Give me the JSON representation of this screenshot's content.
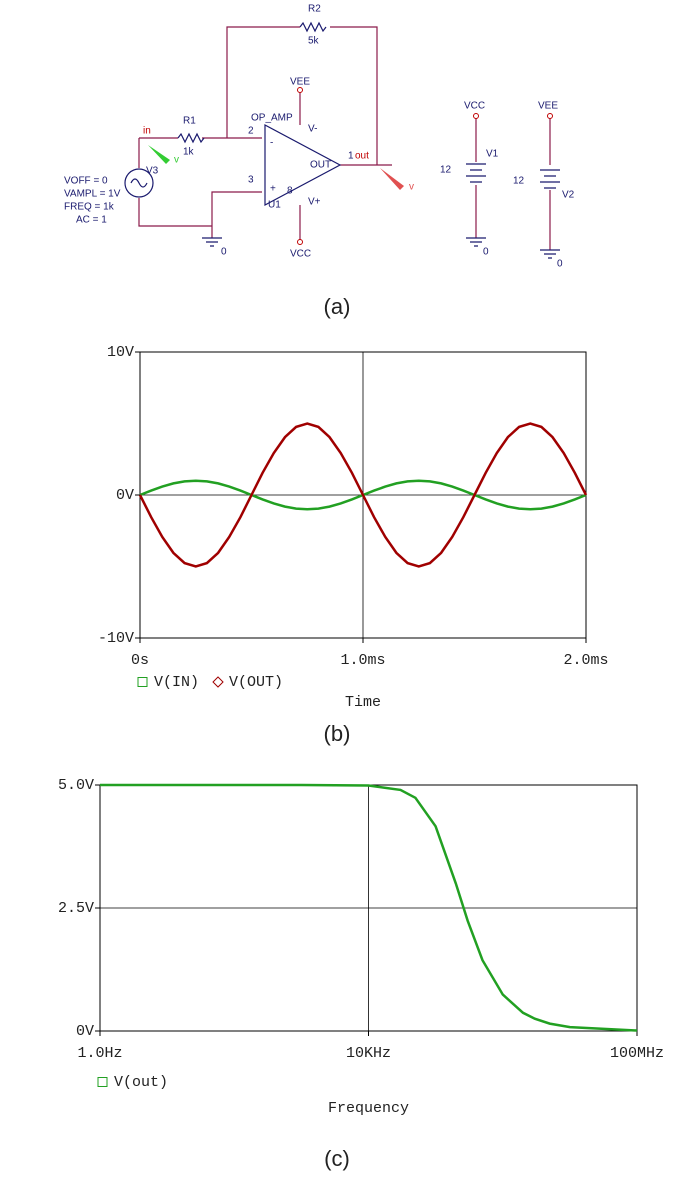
{
  "schematic": {
    "labels": [
      "R2",
      "5k",
      "R1",
      "1k",
      "VEE",
      "OP_AMP",
      "V-",
      "2",
      "-",
      "in",
      "OUT",
      "1",
      "out",
      "3",
      "+",
      "8",
      "U1",
      "V+",
      "VCC",
      "V3",
      "VOFF = 0",
      "VAMPL = 1V",
      "FREQ = 1k",
      "AC = 1",
      "0",
      "VCC",
      "V1",
      "12",
      "0",
      "VEE",
      "V2",
      "12",
      "0",
      "v",
      "v"
    ]
  },
  "captions": [
    "(a)",
    "(b)",
    "(c)"
  ],
  "chart_data": [
    {
      "type": "line",
      "xlabel": "Time",
      "x": [
        0,
        0.05,
        0.1,
        0.15,
        0.2,
        0.25,
        0.3,
        0.35,
        0.4,
        0.45,
        0.5,
        0.55,
        0.6,
        0.65,
        0.7,
        0.75,
        0.8,
        0.85,
        0.9,
        0.95,
        1,
        1.05,
        1.1,
        1.15,
        1.2,
        1.25,
        1.3,
        1.35,
        1.4,
        1.45,
        1.5,
        1.55,
        1.6,
        1.65,
        1.7,
        1.75,
        1.8,
        1.85,
        1.9,
        1.95,
        2
      ],
      "series": [
        {
          "name": "V(IN)",
          "color": "#22a022",
          "marker": "square",
          "values": [
            0,
            0.31,
            0.59,
            0.81,
            0.95,
            1,
            0.95,
            0.81,
            0.59,
            0.31,
            0,
            -0.31,
            -0.59,
            -0.81,
            -0.95,
            -1,
            -0.95,
            -0.81,
            -0.59,
            -0.31,
            0,
            0.31,
            0.59,
            0.81,
            0.95,
            1,
            0.95,
            0.81,
            0.59,
            0.31,
            0,
            -0.31,
            -0.59,
            -0.81,
            -0.95,
            -1,
            -0.95,
            -0.81,
            -0.59,
            -0.31,
            0
          ]
        },
        {
          "name": "V(OUT)",
          "color": "#a00000",
          "marker": "diamond",
          "values": [
            0,
            -1.55,
            -2.94,
            -4.05,
            -4.76,
            -5,
            -4.76,
            -4.05,
            -2.94,
            -1.55,
            0,
            1.55,
            2.94,
            4.05,
            4.76,
            5,
            4.76,
            4.05,
            2.94,
            1.55,
            0,
            -1.55,
            -2.94,
            -4.05,
            -4.76,
            -5,
            -4.76,
            -4.05,
            -2.94,
            -1.55,
            0,
            1.55,
            2.94,
            4.05,
            4.76,
            5,
            4.76,
            4.05,
            2.94,
            1.55,
            0
          ]
        }
      ],
      "xlim": [
        0,
        2
      ],
      "xticks": [
        {
          "value": 0,
          "label": "0s"
        },
        {
          "value": 1,
          "label": "1.0ms"
        },
        {
          "value": 2,
          "label": "2.0ms"
        }
      ],
      "ylim": [
        -10,
        10
      ],
      "yticks": [
        {
          "value": -10,
          "label": "-10V"
        },
        {
          "value": 0,
          "label": "0V"
        },
        {
          "value": 10,
          "label": "10V"
        }
      ],
      "log_x": false,
      "grid": true
    },
    {
      "type": "line",
      "xlabel": "Frequency",
      "x": [
        1,
        10,
        100,
        1000,
        10000,
        30000,
        50000,
        100000,
        200000,
        300000,
        500000,
        1000000,
        2000000,
        3000000,
        5000000,
        10000000,
        100000000
      ],
      "series": [
        {
          "name": "V(out)",
          "color": "#22a022",
          "marker": "square",
          "values": [
            5,
            5,
            5,
            5,
            4.99,
            4.9,
            4.74,
            4.16,
            3.0,
            2.24,
            1.44,
            0.74,
            0.37,
            0.25,
            0.15,
            0.08,
            0.01
          ]
        }
      ],
      "xlim": [
        1,
        100000000
      ],
      "xticks": [
        {
          "value": 1,
          "label": "1.0Hz"
        },
        {
          "value": 10000,
          "label": "10KHz"
        },
        {
          "value": 100000000,
          "label": "100MHz"
        }
      ],
      "ylim": [
        0,
        5
      ],
      "yticks": [
        {
          "value": 0,
          "label": "0V"
        },
        {
          "value": 2.5,
          "label": "2.5V"
        },
        {
          "value": 5,
          "label": "5.0V"
        }
      ],
      "log_x": true,
      "grid": true
    }
  ]
}
